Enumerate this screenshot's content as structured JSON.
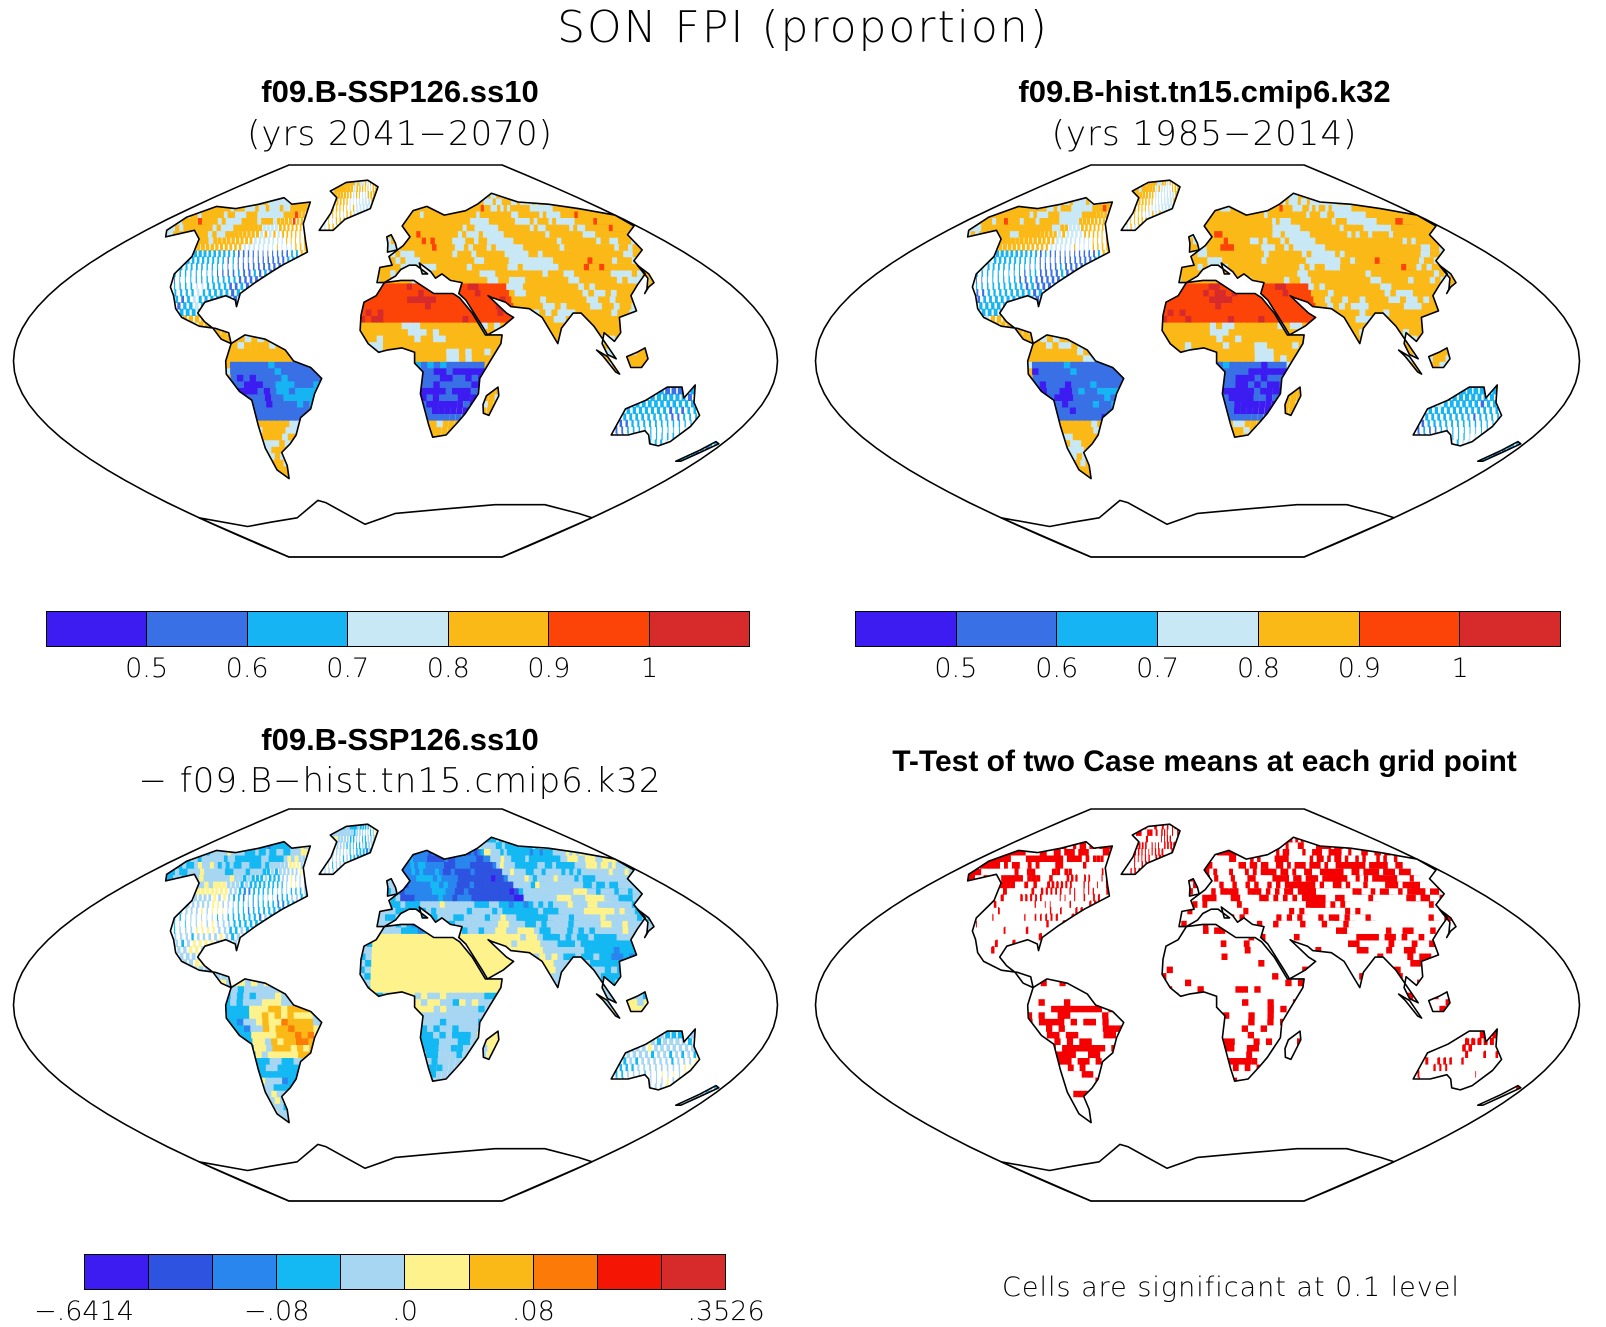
{
  "title": "SON FPI (proportion)",
  "panels": {
    "future": {
      "title": "f09.B-SSP126.ss10",
      "subtitle": "(yrs 2041−2070)"
    },
    "historical": {
      "title": "f09.B-hist.tn15.cmip6.k32",
      "subtitle": "(yrs 1985−2014)"
    },
    "difference": {
      "title": "f09.B-SSP126.ss10",
      "subtitle": "− f09.B−hist.tn15.cmip6.k32"
    },
    "ttest": {
      "title": "T-Test of two Case means at each grid point",
      "footnote": "Cells are significant at 0.1 level"
    }
  },
  "colorbar_main": {
    "colors": [
      "#3c1cf0",
      "#3a70e6",
      "#16b4f2",
      "#c8e8f6",
      "#fbb917",
      "#fc4409",
      "#d72b2b"
    ],
    "labels": [
      "0.5",
      "0.6",
      "0.7",
      "0.8",
      "0.9",
      "1"
    ]
  },
  "colorbar_diff": {
    "colors": [
      "#3c1cf0",
      "#2e53e0",
      "#2a86ef",
      "#14b8f3",
      "#a6d6f2",
      "#fdf28c",
      "#fbb917",
      "#fb7a08",
      "#f51505",
      "#d72b2b"
    ],
    "labels": [
      "−.6414",
      "−.08",
      ".0",
      ".08",
      ".3526"
    ]
  },
  "colors": {
    "significant": "#f50000",
    "coastline": "#000000"
  }
}
